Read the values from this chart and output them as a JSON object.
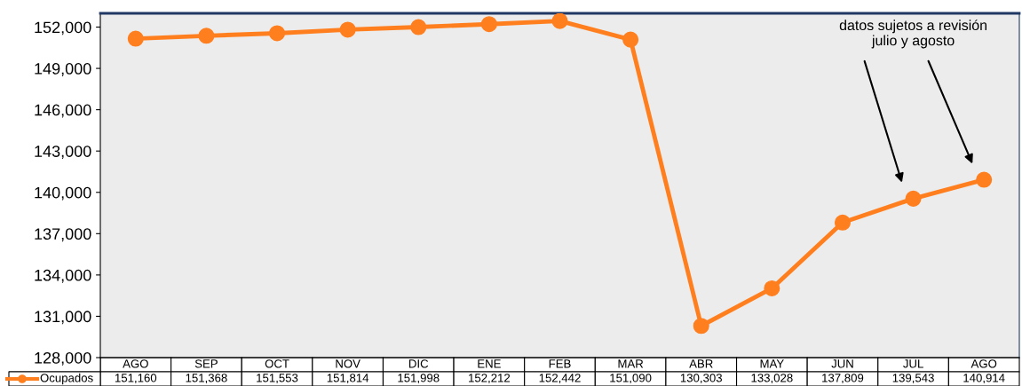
{
  "chart_data": {
    "type": "line",
    "categories": [
      "AGO",
      "SEP",
      "OCT",
      "NOV",
      "DIC",
      "ENE",
      "FEB",
      "MAR",
      "ABR",
      "MAY",
      "JUN",
      "JUL",
      "AGO"
    ],
    "series": [
      {
        "name": "Ocupados",
        "color": "#ff7f1f",
        "values": [
          151160,
          151368,
          151553,
          151814,
          151998,
          152212,
          152442,
          151090,
          130303,
          133028,
          137809,
          139543,
          140914
        ]
      }
    ],
    "ylim": [
      128000,
      153000
    ],
    "yticks": [
      {
        "value": 128000,
        "label": "128,000"
      },
      {
        "value": 131000,
        "label": "131,000"
      },
      {
        "value": 134000,
        "label": "134,000"
      },
      {
        "value": 137000,
        "label": "137,000"
      },
      {
        "value": 140000,
        "label": "140,000"
      },
      {
        "value": 143000,
        "label": "143,000"
      },
      {
        "value": 146000,
        "label": "146,000"
      },
      {
        "value": 149000,
        "label": "149,000"
      },
      {
        "value": 152000,
        "label": "152,000"
      }
    ],
    "marker": "circle",
    "line_style": "solid",
    "value_labels": [
      "151,160",
      "151,368",
      "151,553",
      "151,814",
      "151,998",
      "152,212",
      "152,442",
      "151,090",
      "130,303",
      "133,028",
      "137,809",
      "139,543",
      "140,914"
    ],
    "annotations": [
      "datos sujetos a revisión\njulio y agosto"
    ]
  }
}
